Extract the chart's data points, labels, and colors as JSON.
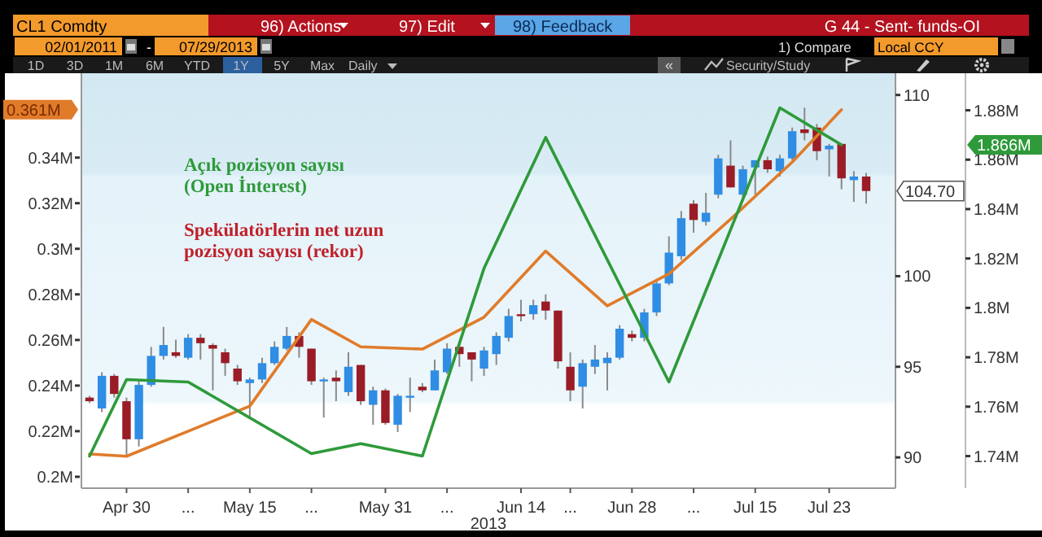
{
  "chart_data": {
    "type": "candlestick",
    "xlabel": "2013",
    "categories": [
      null,
      null,
      null,
      "Apr 30",
      null,
      null,
      null,
      null,
      "...",
      null,
      null,
      null,
      null,
      "May 15",
      null,
      null,
      null,
      null,
      "...",
      null,
      null,
      null,
      null,
      null,
      "May 31",
      null,
      null,
      null,
      null,
      "...",
      null,
      null,
      null,
      null,
      null,
      "Jun 14",
      null,
      null,
      null,
      "...",
      null,
      null,
      null,
      null,
      "Jun 28",
      null,
      null,
      null,
      null,
      "...",
      null,
      null,
      null,
      null,
      "Jul 15",
      null,
      null,
      null,
      null,
      null,
      "Jul 23",
      null,
      null,
      null
    ],
    "ylim": [
      0.195,
      0.377
    ],
    "yticks": [
      {
        "value": 0.2,
        "label": "0.2M"
      },
      {
        "value": 0.22,
        "label": "0.22M"
      },
      {
        "value": 0.24,
        "label": "0.24M"
      },
      {
        "value": 0.26,
        "label": "0.26M"
      },
      {
        "value": 0.28,
        "label": "0.28M"
      },
      {
        "value": 0.3,
        "label": "0.3M"
      },
      {
        "value": 0.32,
        "label": "0.32M"
      },
      {
        "value": 0.34,
        "label": "0.34M"
      }
    ],
    "y2lim": [
      88.3,
      111.2
    ],
    "y2ticks": [
      90,
      95,
      100,
      110
    ],
    "y3lim": [
      1.727,
      1.895
    ],
    "y3ticks": [
      {
        "value": 1.74,
        "label": "1.74M"
      },
      {
        "value": 1.76,
        "label": "1.76M"
      },
      {
        "value": 1.78,
        "label": "1.78M"
      },
      {
        "value": 1.8,
        "label": "1.8M"
      },
      {
        "value": 1.82,
        "label": "1.82M"
      },
      {
        "value": 1.84,
        "label": "1.84M"
      },
      {
        "value": 1.86,
        "label": "1.86M"
      },
      {
        "value": 1.88,
        "label": "1.88M"
      }
    ],
    "series": [
      {
        "axis": "y2",
        "colors": [
          "#9a1c26",
          "#2f8de4",
          "#9a1c26",
          "#9a1c26",
          "#2f8de4",
          "#2f8de4",
          "#2f8de4",
          "#9a1c26",
          "#2f8de4",
          "#9a1c26",
          "#9a1c26",
          "#9a1c26",
          "#9a1c26",
          "#2f8de4",
          "#2f8de4",
          "#2f8de4",
          "#2f8de4",
          "#9a1c26",
          "#9a1c26",
          "#2f8de4",
          "#9a1c26",
          "#2f8de4",
          "#9a1c26",
          "#2f8de4",
          "#9a1c26",
          "#2f8de4",
          "#2f8de4",
          "#9a1c26",
          "#2f8de4",
          "#2f8de4",
          "#9a1c26",
          "#9a1c26",
          "#2f8de4",
          "#2f8de4",
          "#2f8de4",
          "#9a1c26",
          "#2f8de4",
          "#9a1c26",
          "#9a1c26",
          "#9a1c26",
          "#2f8de4",
          "#2f8de4",
          "#2f8de4",
          "#2f8de4",
          "#9a1c26",
          "#2f8de4",
          "#2f8de4",
          "#2f8de4",
          "#2f8de4",
          "#9a1c26",
          "#2f8de4",
          "#2f8de4",
          "#9a1c26",
          "#2f8de4",
          "#2f8de4",
          "#9a1c26",
          "#2f8de4",
          "#2f8de4",
          "#9a1c26",
          "#9a1c26",
          "#2f8de4",
          "#9a1c26",
          "#2f8de4",
          "#9a1c26"
        ],
        "ohlc": [
          [
            93.3,
            93.4,
            93.0,
            93.1
          ],
          [
            92.7,
            94.7,
            92.5,
            94.5
          ],
          [
            94.5,
            94.6,
            93.3,
            93.5
          ],
          [
            93.1,
            93.3,
            90.1,
            91.0
          ],
          [
            91.0,
            94.2,
            90.6,
            94.0
          ],
          [
            94.0,
            96.1,
            93.9,
            95.6
          ],
          [
            95.6,
            97.2,
            95.4,
            96.2
          ],
          [
            95.8,
            96.5,
            95.5,
            95.6
          ],
          [
            95.5,
            96.8,
            95.4,
            96.6
          ],
          [
            96.6,
            96.8,
            95.4,
            96.3
          ],
          [
            96.2,
            96.3,
            93.7,
            96.0
          ],
          [
            95.8,
            96.0,
            94.5,
            95.2
          ],
          [
            94.9,
            95.1,
            94.0,
            94.2
          ],
          [
            94.1,
            94.4,
            92.2,
            94.3
          ],
          [
            94.3,
            95.5,
            94.1,
            95.2
          ],
          [
            95.2,
            96.4,
            95.1,
            96.1
          ],
          [
            96.0,
            97.2,
            95.9,
            96.7
          ],
          [
            96.7,
            96.9,
            95.5,
            96.1
          ],
          [
            96.0,
            96.0,
            94.0,
            94.2
          ],
          [
            94.2,
            94.4,
            92.2,
            94.3
          ],
          [
            94.4,
            94.8,
            93.1,
            94.2
          ],
          [
            93.6,
            95.8,
            93.4,
            95.0
          ],
          [
            95.1,
            95.1,
            92.9,
            93.1
          ],
          [
            92.9,
            93.9,
            91.8,
            93.7
          ],
          [
            93.7,
            93.8,
            91.8,
            91.9
          ],
          [
            91.8,
            93.5,
            91.4,
            93.4
          ],
          [
            93.3,
            94.4,
            92.5,
            93.4
          ],
          [
            93.9,
            94.1,
            93.6,
            93.7
          ],
          [
            93.7,
            95.4,
            93.7,
            94.8
          ],
          [
            94.7,
            96.3,
            94.6,
            96.0
          ],
          [
            96.1,
            96.4,
            95.0,
            95.7
          ],
          [
            95.8,
            95.8,
            94.2,
            95.4
          ],
          [
            94.9,
            96.1,
            94.5,
            95.9
          ],
          [
            95.7,
            96.9,
            95.1,
            96.7
          ],
          [
            96.6,
            98.2,
            96.4,
            97.8
          ],
          [
            97.9,
            98.7,
            97.5,
            97.8
          ],
          [
            97.9,
            98.7,
            97.6,
            98.4
          ],
          [
            98.6,
            99.0,
            97.6,
            98.1
          ],
          [
            98.1,
            98.1,
            94.9,
            95.3
          ],
          [
            95.0,
            95.8,
            93.1,
            93.7
          ],
          [
            93.9,
            95.4,
            92.7,
            95.2
          ],
          [
            95.0,
            96.2,
            94.6,
            95.4
          ],
          [
            95.2,
            95.8,
            93.7,
            95.5
          ],
          [
            95.5,
            97.3,
            95.4,
            97.1
          ],
          [
            96.8,
            97.0,
            96.4,
            96.6
          ],
          [
            96.6,
            98.2,
            96.4,
            98.0
          ],
          [
            98.0,
            99.7,
            97.8,
            99.6
          ],
          [
            99.6,
            102.2,
            99.5,
            101.3
          ],
          [
            101.1,
            103.6,
            100.9,
            103.2
          ],
          [
            104.0,
            104.2,
            102.4,
            103.1
          ],
          [
            103.0,
            104.6,
            102.8,
            103.5
          ],
          [
            104.5,
            106.7,
            104.3,
            106.5
          ],
          [
            106.1,
            107.5,
            104.9,
            104.9
          ],
          [
            104.5,
            106.1,
            104.2,
            105.9
          ],
          [
            106.0,
            106.4,
            104.5,
            106.4
          ],
          [
            106.4,
            106.6,
            105.7,
            105.9
          ],
          [
            105.8,
            106.7,
            105.5,
            106.5
          ],
          [
            106.5,
            108.2,
            106.4,
            108.0
          ],
          [
            108.1,
            109.3,
            107.5,
            107.9
          ],
          [
            108.2,
            108.4,
            106.4,
            106.9
          ],
          [
            107.0,
            107.3,
            105.5,
            107.2
          ],
          [
            107.3,
            107.3,
            104.8,
            105.4
          ],
          [
            105.3,
            105.8,
            104.1,
            105.5
          ],
          [
            105.5,
            105.7,
            104.0,
            104.7
          ]
        ]
      },
      {
        "type": "line",
        "color": "#e07b2a",
        "values": [
          0.21,
          null,
          null,
          0.209,
          null,
          null,
          null,
          null,
          null,
          null,
          null,
          null,
          null,
          0.231,
          null,
          null,
          null,
          null,
          0.269,
          null,
          null,
          null,
          0.257,
          null,
          null,
          null,
          null,
          0.256,
          null,
          null,
          null,
          null,
          0.27,
          null,
          null,
          null,
          null,
          0.299,
          null,
          null,
          null,
          null,
          0.275,
          null,
          null,
          null,
          null,
          0.289,
          null,
          null,
          null,
          null,
          0.313,
          null,
          null,
          null,
          null,
          0.338,
          null,
          null,
          null,
          0.361,
          null,
          null
        ]
      },
      {
        "type": "line",
        "axis": "y3",
        "color": "#2e9a3a",
        "values": [
          1.74,
          null,
          null,
          1.771,
          null,
          null,
          null,
          null,
          1.77,
          null,
          null,
          null,
          null,
          null,
          null,
          null,
          null,
          null,
          1.741,
          null,
          null,
          null,
          1.745,
          null,
          null,
          null,
          null,
          1.74,
          null,
          null,
          null,
          null,
          1.816,
          null,
          null,
          null,
          null,
          1.869,
          null,
          null,
          null,
          null,
          null,
          null,
          null,
          null,
          null,
          1.77,
          null,
          null,
          null,
          null,
          null,
          null,
          null,
          null,
          1.881,
          null,
          null,
          null,
          null,
          1.866,
          null,
          null
        ]
      }
    ],
    "annotations": [
      "Açık pozisyon sayısı (Open İnterest)",
      "Spekülatörlerin net uzun pozisyon sayısı (rekor)",
      "0.361M",
      "104.70",
      "1.866M",
      "CL1 Comdty",
      "96) Actions",
      "97) Edit",
      "98) Feedback",
      "G 44 - Sent- funds-OI",
      "02/01/2011",
      "-",
      "07/29/2013",
      "1) Compare",
      "Local CCY",
      "1D",
      "3D",
      "1M",
      "6M",
      "YTD",
      "1Y",
      "5Y",
      "Max",
      "Daily",
      "«",
      "Security/Study"
    ]
  }
}
